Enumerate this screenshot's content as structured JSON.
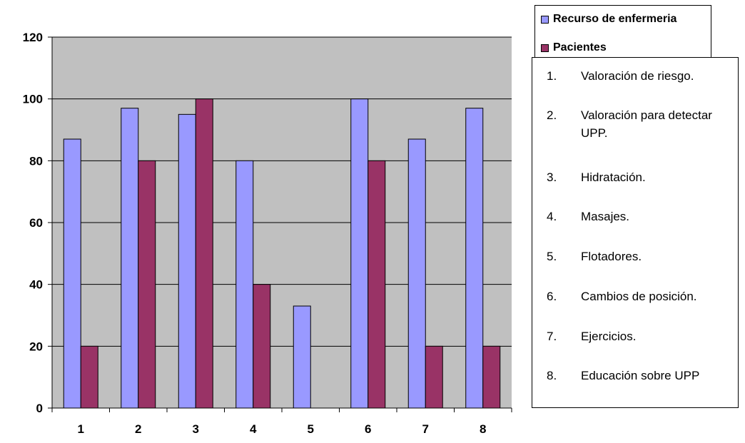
{
  "chart_data": {
    "type": "bar",
    "categories": [
      "1",
      "2",
      "3",
      "4",
      "5",
      "6",
      "7",
      "8"
    ],
    "series": [
      {
        "name": "Recurso de enfermeria",
        "values": [
          87,
          97,
          95,
          80,
          33,
          100,
          87,
          97
        ],
        "color": "#9999ff"
      },
      {
        "name": "Pacientes",
        "values": [
          20,
          80,
          100,
          40,
          0,
          80,
          20,
          20
        ],
        "color": "#993366"
      }
    ],
    "ylim": [
      0,
      120
    ],
    "yticks": [
      "0",
      "20",
      "40",
      "60",
      "80",
      "100",
      "120"
    ],
    "grid": true,
    "plot_background": "#c0c0c0",
    "legend_position": "top-right"
  },
  "notes": [
    {
      "num": "1.",
      "text": "Valoración de riesgo."
    },
    {
      "num": "2.",
      "text": "Valoración para detectar UPP."
    },
    {
      "num": "3.",
      "text": "Hidratación."
    },
    {
      "num": "4.",
      "text": "Masajes."
    },
    {
      "num": "5.",
      "text": "Flotadores."
    },
    {
      "num": "6.",
      "text": "Cambios de posición."
    },
    {
      "num": "7.",
      "text": "Ejercicios."
    },
    {
      "num": "8.",
      "text": "Educación sobre UPP"
    }
  ]
}
